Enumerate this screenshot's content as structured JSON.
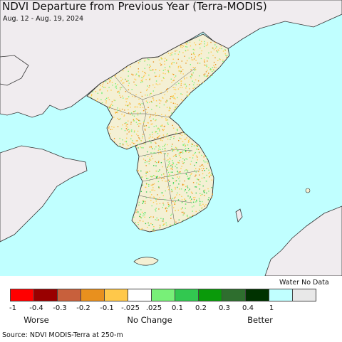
{
  "title": "NDVI Departure from Previous Year (Terra-MODIS)",
  "subtitle": "Aug. 12 - Aug. 19, 2024",
  "legend": {
    "water_nodata_label": "Water No Data",
    "bins": [
      {
        "color": "#ff0000"
      },
      {
        "color": "#990000"
      },
      {
        "color": "#c8603c"
      },
      {
        "color": "#e8901e"
      },
      {
        "color": "#ffc84a"
      },
      {
        "color": "#ffffff"
      },
      {
        "color": "#78f078"
      },
      {
        "color": "#32c850"
      },
      {
        "color": "#0a9a0a"
      },
      {
        "color": "#2e6e2e"
      },
      {
        "color": "#003200"
      },
      {
        "color": "#c0ffff"
      },
      {
        "color": "#e8e8e8"
      }
    ],
    "ticks": [
      "-1",
      "-0.4",
      "-0.3",
      "-0.2",
      "-0.1",
      "-.025",
      ".025",
      "0.1",
      "0.2",
      "0.3",
      "0.4",
      "1"
    ],
    "categories": {
      "worse": "Worse",
      "no_change": "No Change",
      "better": "Better"
    }
  },
  "source": "Source: NDVI MODIS-Terra at 250-m",
  "colors": {
    "water": "#c0ffff",
    "outside_land": "#f0ecef",
    "land_base": "#f4f0d4",
    "border": "#333333"
  }
}
